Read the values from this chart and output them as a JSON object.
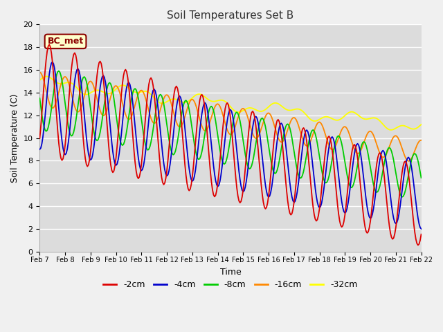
{
  "title": "Soil Temperatures Set B",
  "xlabel": "Time",
  "ylabel": "Soil Temperature (C)",
  "annotation": "BC_met",
  "ylim": [
    0,
    20
  ],
  "yticks": [
    0,
    2,
    4,
    6,
    8,
    10,
    12,
    14,
    16,
    18,
    20
  ],
  "xtick_labels": [
    "Feb 7",
    "Feb 8",
    "Feb 9",
    "Feb 10",
    "Feb 11",
    "Feb 12",
    "Feb 13",
    "Feb 14",
    "Feb 15",
    "Feb 16",
    "Feb 17",
    "Feb 18",
    "Feb 19",
    "Feb 20",
    "Feb 21",
    "Feb 22"
  ],
  "colors": {
    "-2cm": "#dd0000",
    "-4cm": "#0000cc",
    "-8cm": "#00cc00",
    "-16cm": "#ff8800",
    "-32cm": "#ffff00"
  },
  "lw": 1.3,
  "plot_bg": "#dcdcdc",
  "fig_bg": "#f0f0f0",
  "grid_color": "#ffffff",
  "legend_labels": [
    "-2cm",
    "-4cm",
    "-8cm",
    "-16cm",
    "-32cm"
  ],
  "legend_colors": [
    "#dd0000",
    "#0000cc",
    "#00cc00",
    "#ff8800",
    "#ffff00"
  ],
  "ann_text_color": "#8B0000",
  "ann_bg": "#ffffcc",
  "ann_edge": "#8B0000"
}
